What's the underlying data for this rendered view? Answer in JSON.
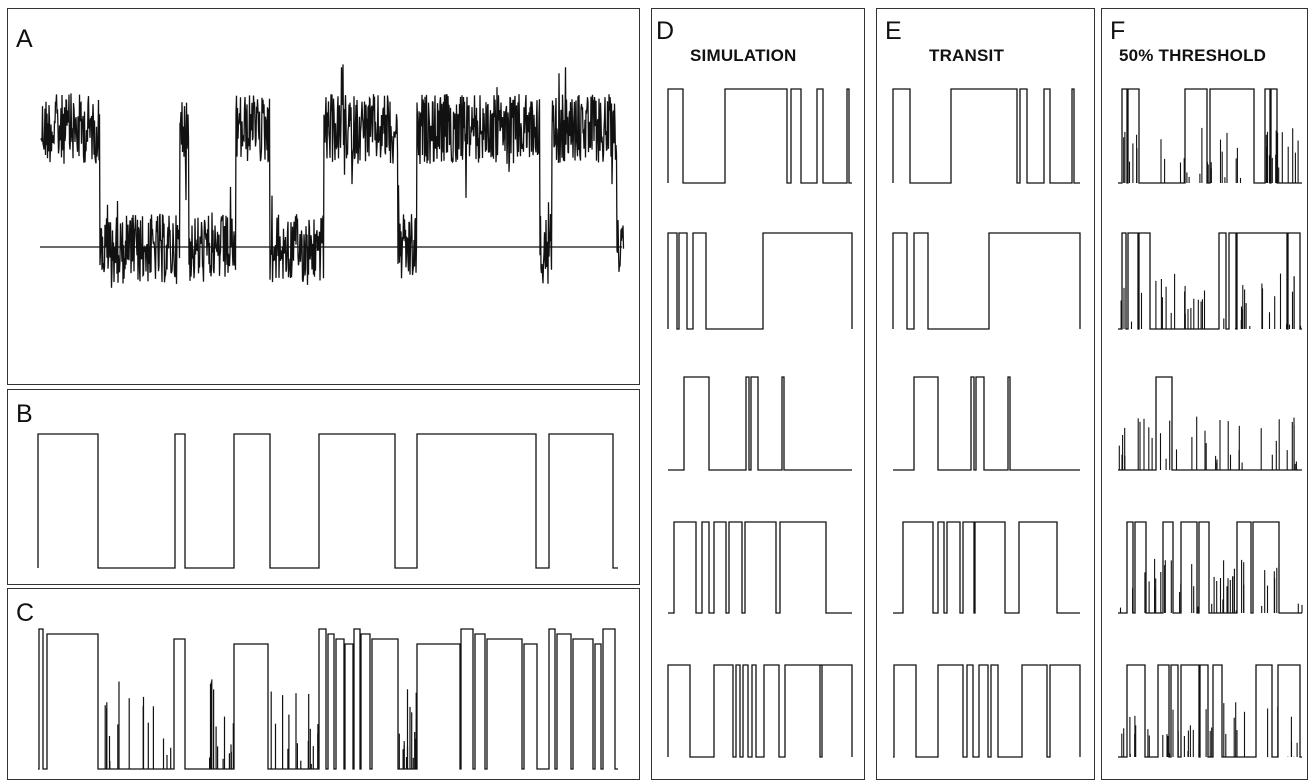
{
  "panels": {
    "A": {
      "label": "A"
    },
    "B": {
      "label": "B"
    },
    "C": {
      "label": "C"
    },
    "D": {
      "label": "D",
      "title": "SIMULATION"
    },
    "E": {
      "label": "E",
      "title": "TRANSIT"
    },
    "F": {
      "label": "F",
      "title": "50% THRESHOLD"
    }
  }
}
